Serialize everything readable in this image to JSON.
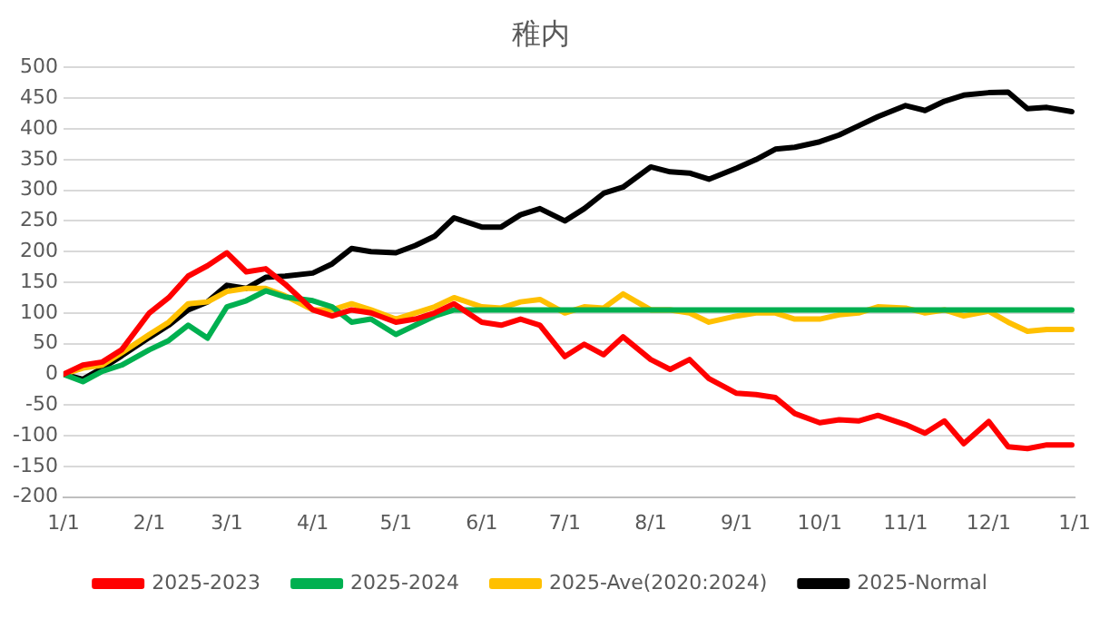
{
  "chart_data": {
    "type": "line",
    "title": "稚内",
    "x": [
      "2025-01-01",
      "2025-01-08",
      "2025-01-15",
      "2025-01-22",
      "2025-02-01",
      "2025-02-08",
      "2025-02-15",
      "2025-02-22",
      "2025-03-01",
      "2025-03-08",
      "2025-03-15",
      "2025-03-22",
      "2025-04-01",
      "2025-04-08",
      "2025-04-15",
      "2025-04-22",
      "2025-05-01",
      "2025-05-08",
      "2025-05-15",
      "2025-05-22",
      "2025-06-01",
      "2025-06-08",
      "2025-06-15",
      "2025-06-22",
      "2025-07-01",
      "2025-07-08",
      "2025-07-15",
      "2025-07-22",
      "2025-08-01",
      "2025-08-08",
      "2025-08-15",
      "2025-08-22",
      "2025-09-01",
      "2025-09-08",
      "2025-09-15",
      "2025-09-22",
      "2025-10-01",
      "2025-10-08",
      "2025-10-15",
      "2025-10-22",
      "2025-11-01",
      "2025-11-08",
      "2025-11-15",
      "2025-11-22",
      "2025-12-01",
      "2025-12-08",
      "2025-12-15",
      "2025-12-22",
      "2025-12-31"
    ],
    "series": [
      {
        "name": "2025-2023",
        "color": "#ff0000",
        "values": [
          0,
          15,
          20,
          40,
          100,
          125,
          160,
          177,
          198,
          167,
          172,
          147,
          105,
          95,
          105,
          100,
          85,
          90,
          100,
          115,
          85,
          80,
          90,
          80,
          29,
          49,
          32,
          61,
          24,
          8,
          24,
          -7,
          -31,
          -33,
          -38,
          -64,
          -79,
          -74,
          -76,
          -67,
          -82,
          -96,
          -76,
          -113,
          -77,
          -118,
          -121,
          -115,
          -115
        ]
      },
      {
        "name": "2025-2024",
        "color": "#00b050",
        "values": [
          0,
          -12,
          5,
          15,
          40,
          55,
          80,
          59,
          110,
          120,
          136,
          126,
          120,
          110,
          85,
          90,
          65,
          80,
          95,
          105,
          105,
          105,
          105,
          105,
          105,
          105,
          105,
          105,
          105,
          105,
          105,
          105,
          105,
          105,
          105,
          105,
          105,
          105,
          105,
          105,
          105,
          105,
          105,
          105,
          105,
          105,
          105,
          105,
          105
        ]
      },
      {
        "name": "2025-Ave(2020:2024)",
        "color": "#ffc000",
        "values": [
          0,
          10,
          15,
          35,
          65,
          85,
          115,
          118,
          135,
          140,
          140,
          128,
          105,
          105,
          115,
          105,
          90,
          100,
          110,
          125,
          110,
          108,
          118,
          122,
          100,
          110,
          108,
          131,
          105,
          105,
          100,
          85,
          95,
          100,
          100,
          90,
          90,
          97,
          100,
          110,
          108,
          100,
          105,
          95,
          103,
          85,
          70,
          73,
          73
        ]
      },
      {
        "name": "2025-Normal",
        "color": "#000000",
        "values": [
          0,
          -8,
          10,
          30,
          60,
          80,
          105,
          118,
          145,
          140,
          158,
          160,
          165,
          180,
          205,
          200,
          198,
          210,
          225,
          255,
          240,
          240,
          260,
          270,
          250,
          270,
          295,
          305,
          338,
          330,
          328,
          318,
          336,
          350,
          367,
          370,
          379,
          390,
          405,
          420,
          438,
          430,
          445,
          455,
          459,
          460,
          433,
          435,
          428
        ]
      }
    ],
    "xlim": [
      "2025-01-01",
      "2026-01-01"
    ],
    "xticks": [
      {
        "value": "2025-01-01",
        "label": "1/1"
      },
      {
        "value": "2025-02-01",
        "label": "2/1"
      },
      {
        "value": "2025-03-01",
        "label": "3/1"
      },
      {
        "value": "2025-04-01",
        "label": "4/1"
      },
      {
        "value": "2025-05-01",
        "label": "5/1"
      },
      {
        "value": "2025-06-01",
        "label": "6/1"
      },
      {
        "value": "2025-07-01",
        "label": "7/1"
      },
      {
        "value": "2025-08-01",
        "label": "8/1"
      },
      {
        "value": "2025-09-01",
        "label": "9/1"
      },
      {
        "value": "2025-10-01",
        "label": "10/1"
      },
      {
        "value": "2025-11-01",
        "label": "11/1"
      },
      {
        "value": "2025-12-01",
        "label": "12/1"
      },
      {
        "value": "2026-01-01",
        "label": "1/1"
      }
    ],
    "ylim": [
      -200,
      500
    ],
    "yticks": [
      -200,
      -150,
      -100,
      -50,
      0,
      50,
      100,
      150,
      200,
      250,
      300,
      350,
      400,
      450,
      500
    ],
    "grid": "y",
    "legend": "bottom",
    "marker": "none",
    "line_style": "solid"
  }
}
